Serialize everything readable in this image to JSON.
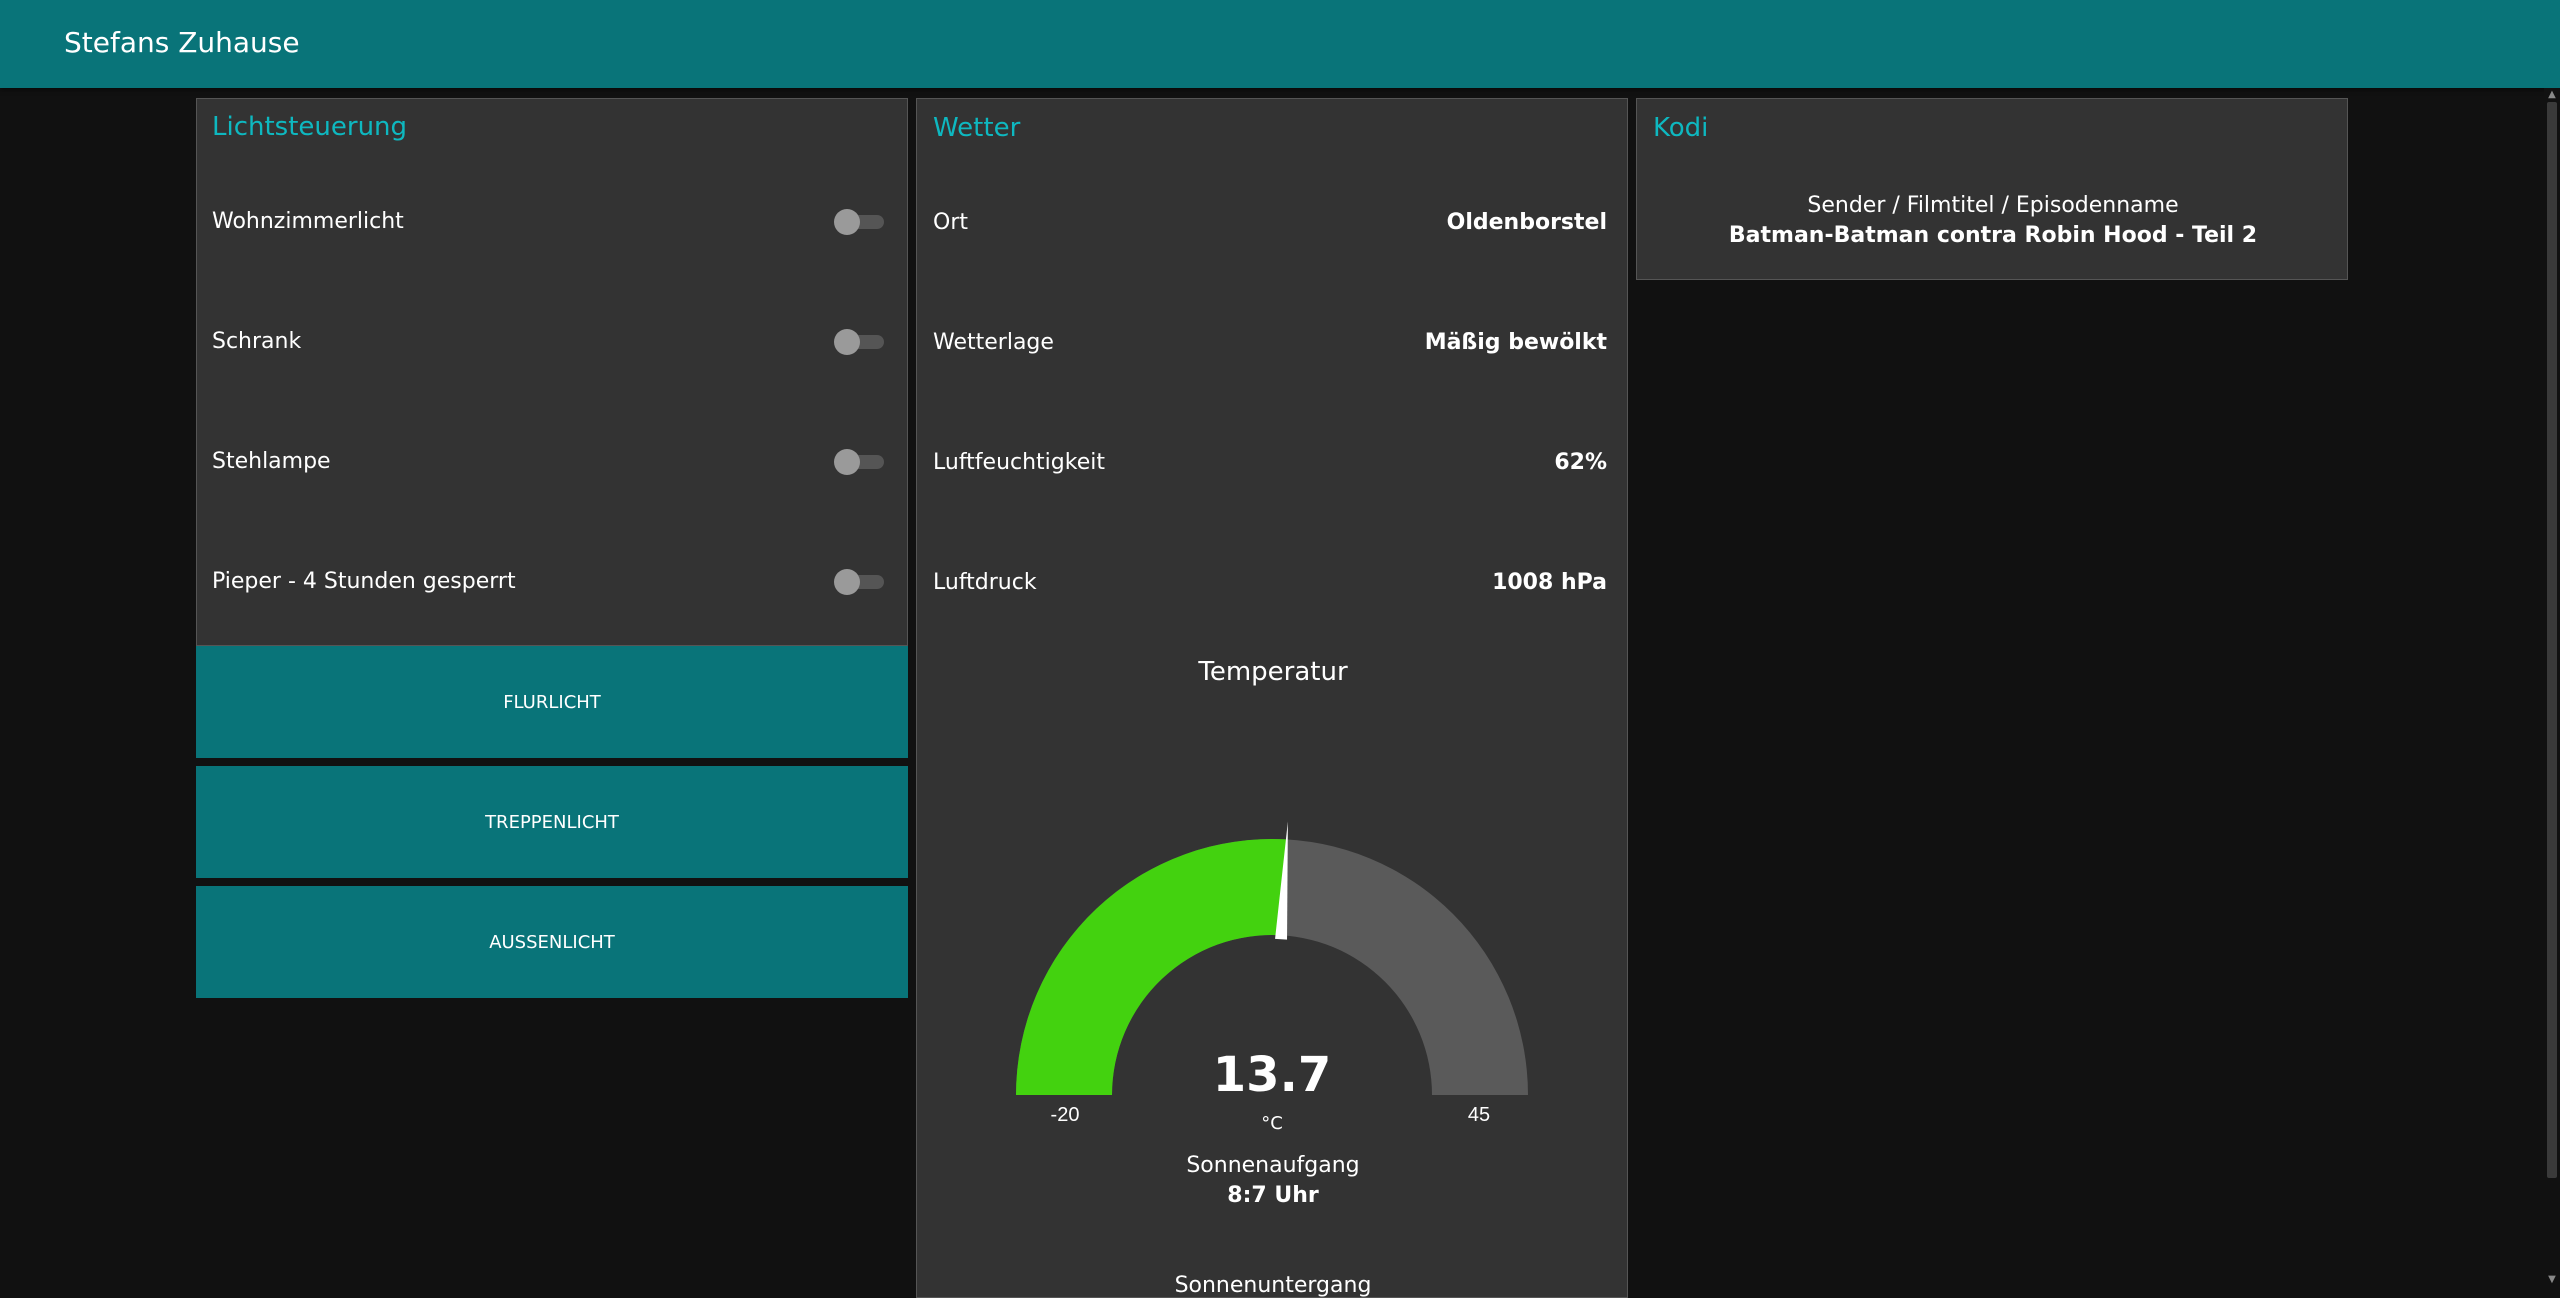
{
  "header": {
    "title": "Stefans Zuhause"
  },
  "lights": {
    "title": "Lichtsteuerung",
    "switches": [
      {
        "label": "Wohnzimmerlicht",
        "on": false
      },
      {
        "label": "Schrank",
        "on": false
      },
      {
        "label": "Stehlampe",
        "on": false
      },
      {
        "label": "Pieper - 4 Stunden gesperrt",
        "on": false
      }
    ],
    "buttons": [
      "FLURLICHT",
      "TREPPENLICHT",
      "AUSSENLICHT"
    ]
  },
  "weather": {
    "title": "Wetter",
    "rows": [
      {
        "label": "Ort",
        "value": "Oldenborstel"
      },
      {
        "label": "Wetterlage",
        "value": "Mäßig bewölkt"
      },
      {
        "label": "Luftfeuchtigkeit",
        "value": "62%"
      },
      {
        "label": "Luftdruck",
        "value": "1008 hPa"
      }
    ],
    "gauge": {
      "title": "Temperatur",
      "value": "13.7",
      "unit": "°C",
      "min": "-20",
      "max": "45",
      "value_num": 13.7,
      "min_num": -20,
      "max_num": 45,
      "fill_color": "#43d20f",
      "track_color": "#5a5a5a"
    },
    "sunrise": {
      "label": "Sonnenaufgang",
      "value": "8:7 Uhr"
    },
    "sunset": {
      "label": "Sonnenuntergang"
    }
  },
  "kodi": {
    "title": "Kodi",
    "label": "Sender / Filmtitel / Episodenname",
    "value": "Batman-Batman contra Robin Hood - Teil 2"
  },
  "colors": {
    "accent": "#097479",
    "title_accent": "#0eb8c0",
    "card_bg": "#333333",
    "page_bg": "#111111"
  }
}
